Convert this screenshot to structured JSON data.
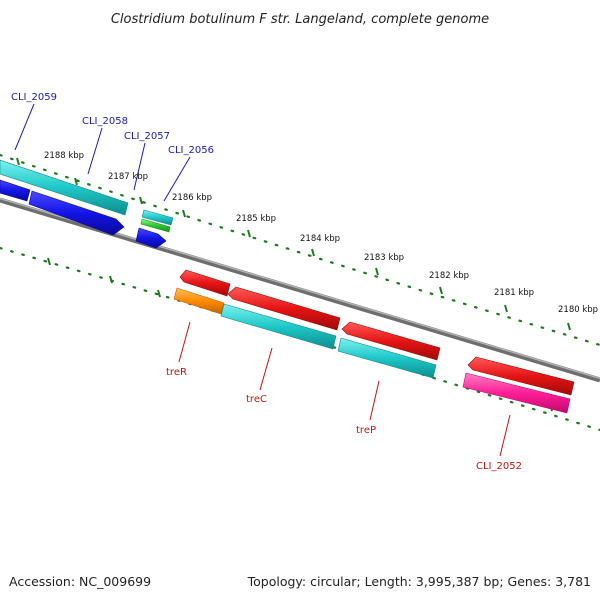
{
  "title": "Clostridium botulinum F str. Langeland, complete genome",
  "footer": {
    "accession": "Accession: NC_009699",
    "summary": "Topology: circular; Length: 3,995,387 bp; Genes: 3,781"
  },
  "scale_ticks": [
    "2188 kbp",
    "2187 kbp",
    "2186 kbp",
    "2185 kbp",
    "2184 kbp",
    "2183 kbp",
    "2182 kbp",
    "2181 kbp",
    "2180 kbp"
  ],
  "gene_labels": {
    "top": [
      "CLI_2059",
      "CLI_2058",
      "CLI_2057",
      "CLI_2056"
    ],
    "bottom": [
      "treR",
      "treC",
      "treP",
      "CLI_2052"
    ]
  },
  "colors": {
    "backbone": "#8a8a8a",
    "tick_marks": "#1e7a1e",
    "blue_feature": "#1414e6",
    "cyan_feature": "#1ec8c8",
    "green_feature": "#2ec82e",
    "red_feature": "#e61414",
    "orange_feature": "#ff8c00",
    "pink_feature": "#ff1e96",
    "top_labels": "#1a1ab4",
    "bottom_labels": "#c41414"
  }
}
